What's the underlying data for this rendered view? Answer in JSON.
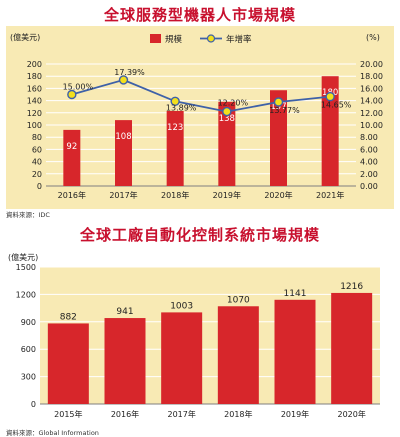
{
  "chart_data": [
    {
      "type": "bar+line",
      "title": "全球服務型機器人市場規模",
      "ylabel_left": "(億美元)",
      "ylabel_right": "(%)",
      "categories": [
        "2016年",
        "2017年",
        "2018年",
        "2019年",
        "2020年",
        "2021年"
      ],
      "series": [
        {
          "name": "規模",
          "type": "bar",
          "axis": "left",
          "color": "#d7262b",
          "values": [
            92,
            108,
            123,
            138,
            157,
            180
          ]
        },
        {
          "name": "年增率",
          "type": "line",
          "axis": "right",
          "color": "#3e61a8",
          "marker_color": "#f3df1c",
          "values": [
            15.0,
            17.39,
            13.89,
            12.2,
            13.77,
            14.65
          ],
          "labels": [
            "15.00%",
            "17.39%",
            "13.89%",
            "12.20%",
            "13.77%",
            "14.65%"
          ]
        }
      ],
      "left_ticks": [
        "0",
        "20",
        "40",
        "60",
        "80",
        "100",
        "120",
        "140",
        "160",
        "180",
        "200"
      ],
      "right_ticks": [
        "0.00",
        "2.00",
        "4.00",
        "6.00",
        "8.00",
        "10.00",
        "12.00",
        "14.00",
        "16.00",
        "18.00",
        "20.00"
      ],
      "ylim_left": [
        0,
        200
      ],
      "ylim_right": [
        0,
        20
      ],
      "grid": true,
      "legend_position": "top-center",
      "background_color": "#f8eab4",
      "source": "資料來源：IDC"
    },
    {
      "type": "bar",
      "title": "全球工廠自動化控制系統市場規模",
      "ylabel": "(億美元)",
      "categories": [
        "2015年",
        "2016年",
        "2017年",
        "2018年",
        "2019年",
        "2020年"
      ],
      "values": [
        882,
        941,
        1003,
        1070,
        1141,
        1216
      ],
      "value_labels": [
        "882",
        "941",
        "1003",
        "1070",
        "1141",
        "1216"
      ],
      "color": "#d7262b",
      "y_ticks": [
        "0",
        "300",
        "600",
        "900",
        "1200",
        "1500"
      ],
      "ylim": [
        0,
        1500
      ],
      "grid": true,
      "background_color": "#f8eab4",
      "source": "資料來源：Global Information"
    }
  ]
}
